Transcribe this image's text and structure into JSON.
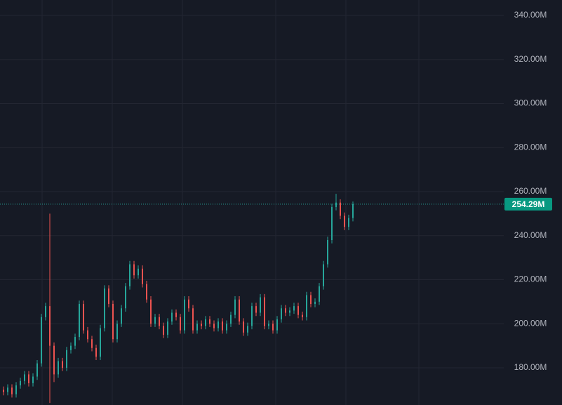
{
  "chart_data": {
    "type": "candlestick",
    "up_color": "#26a69a",
    "down_color": "#ef5350",
    "ylim": [
      163.1,
      347.0
    ],
    "yticks": [
      {
        "value": 180,
        "label": "180.00M"
      },
      {
        "value": 200,
        "label": "200.00M"
      },
      {
        "value": 220,
        "label": "220.00M"
      },
      {
        "value": 240,
        "label": "240.00M"
      },
      {
        "value": 260,
        "label": "260.00M"
      },
      {
        "value": 280,
        "label": "280.00M"
      },
      {
        "value": 300,
        "label": "300.00M"
      },
      {
        "value": 320,
        "label": "320.00M"
      },
      {
        "value": 340,
        "label": "340.00M"
      }
    ],
    "grid": true,
    "last_value_label": "254.29M",
    "open": [
      170,
      169,
      171,
      168,
      172,
      174,
      177,
      173,
      176,
      182,
      203,
      208,
      190,
      177,
      183,
      180,
      188,
      190,
      194,
      209,
      197,
      193,
      189,
      185,
      198,
      216,
      209,
      193,
      200,
      207,
      217,
      227,
      222,
      225,
      218,
      211,
      200,
      203,
      199,
      195,
      201,
      205,
      203,
      197,
      211,
      207,
      197,
      200,
      199,
      202,
      200,
      198,
      201,
      197,
      200,
      204,
      211,
      201,
      196,
      199,
      208,
      205,
      212,
      199,
      200,
      197,
      202,
      207,
      205,
      206,
      208,
      204,
      203,
      213,
      209,
      210,
      217,
      227,
      238,
      253,
      255,
      249,
      244,
      248
    ],
    "high": [
      171.5,
      172.5,
      172.5,
      173.5,
      175.5,
      178.5,
      178.5,
      177.5,
      183.5,
      204.5,
      209.5,
      250,
      191.5,
      184.5,
      184.5,
      189.5,
      191.5,
      195.5,
      210.5,
      210.5,
      198.5,
      194.5,
      190.5,
      199.5,
      217.5,
      217.5,
      210.5,
      201.5,
      208.5,
      218.5,
      228.5,
      228.5,
      226.5,
      226.5,
      219.5,
      212.5,
      204.5,
      204.5,
      200.5,
      202.5,
      206.5,
      206.5,
      204.5,
      212.5,
      212.5,
      208.5,
      201.5,
      201.5,
      203.5,
      203.5,
      201.5,
      202.5,
      202.5,
      201.5,
      205.5,
      212.5,
      212.5,
      202.5,
      200.5,
      209.5,
      209.5,
      213.5,
      213.5,
      201.5,
      201.5,
      203.5,
      208.5,
      208.5,
      207.5,
      209.5,
      209.5,
      205.5,
      214.5,
      214.5,
      211.5,
      218.5,
      228.5,
      239.5,
      254.5,
      259,
      256.5,
      250.5,
      249.5,
      255.5
    ],
    "low": [
      167.5,
      167.5,
      166.5,
      166.5,
      170.5,
      172.5,
      171.5,
      171.5,
      174.5,
      180.5,
      201.5,
      164,
      173.5,
      175.5,
      178.5,
      178.5,
      186.5,
      188.5,
      192.5,
      195.5,
      191.5,
      187.5,
      183.5,
      183.5,
      196.5,
      207.5,
      191.5,
      191.5,
      198.5,
      205.5,
      215.5,
      220.5,
      220.5,
      216.5,
      209.5,
      198.5,
      198.5,
      197.5,
      193.5,
      193.5,
      199.5,
      201.5,
      195.5,
      195.5,
      205.5,
      195.5,
      195.5,
      197.5,
      197.5,
      198.5,
      196.5,
      196.5,
      195.5,
      195.5,
      198.5,
      202.5,
      199.5,
      194.5,
      194.5,
      197.5,
      203.5,
      203.5,
      197.5,
      197.5,
      195.5,
      195.5,
      200.5,
      203.5,
      203.5,
      204.5,
      202.5,
      201.5,
      201.5,
      207.5,
      207.5,
      208.5,
      215.5,
      225.5,
      236.5,
      251.5,
      247.5,
      242.5,
      242.5,
      246.5
    ],
    "close": [
      169,
      171,
      168,
      172,
      174,
      177,
      173,
      176,
      182,
      203,
      208,
      190,
      177,
      183,
      180,
      188,
      190,
      194,
      209,
      197,
      193,
      189,
      185,
      198,
      216,
      209,
      193,
      200,
      207,
      217,
      227,
      222,
      225,
      218,
      211,
      200,
      203,
      199,
      195,
      201,
      205,
      203,
      197,
      211,
      207,
      197,
      200,
      199,
      202,
      200,
      198,
      201,
      197,
      200,
      204,
      211,
      201,
      196,
      199,
      208,
      205,
      212,
      199,
      200,
      197,
      202,
      207,
      205,
      206,
      208,
      204,
      203,
      213,
      209,
      210,
      217,
      227,
      238,
      253,
      255,
      249,
      244,
      248,
      254.29
    ]
  }
}
